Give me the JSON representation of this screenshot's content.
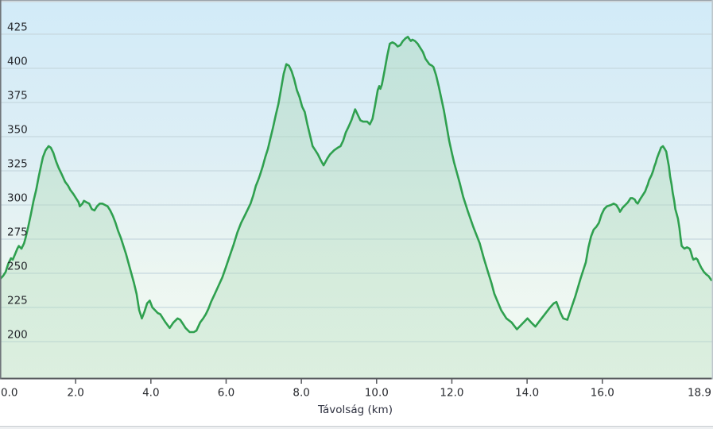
{
  "chart_data": {
    "type": "area",
    "title": "",
    "xlabel": "Távolság (km)",
    "ylabel": "",
    "x_unit": "km",
    "y_unit": "m",
    "xlim": [
      0,
      18.9
    ],
    "ylim": [
      172,
      445
    ],
    "grid": true,
    "legend": "none",
    "y_tick_labels": [
      "425",
      "400",
      "375",
      "350",
      "325",
      "300",
      "275",
      "250",
      "225",
      "200"
    ],
    "y_gridlines": [
      425,
      400,
      375,
      350,
      325,
      300,
      275,
      250,
      225,
      200
    ],
    "x_ticks": [
      0,
      2,
      4,
      6,
      8,
      10,
      12,
      14,
      16,
      18.9
    ],
    "x_tick_labels": [
      "0.0",
      "2.0",
      "4.0",
      "6.0",
      "8.0",
      "10.0",
      "12.0",
      "14.0",
      "16.0",
      "18.9"
    ],
    "colors": {
      "line": "#2fa04f",
      "area_fill_top": "#a8d6b4",
      "area_fill_bottom": "#b9dfc2",
      "background_top": "#d2ebf8",
      "background_bottom": "#f3faf3",
      "gridline": "#c6d8df",
      "axis": "#56585c",
      "tick_label": "#26282d",
      "axis_title": "#2e3140"
    },
    "series": [
      {
        "name": "elevation-profile",
        "points": [
          [
            0.0,
            246
          ],
          [
            0.07,
            248
          ],
          [
            0.14,
            251
          ],
          [
            0.21,
            257
          ],
          [
            0.28,
            261
          ],
          [
            0.33,
            260
          ],
          [
            0.39,
            264
          ],
          [
            0.45,
            268
          ],
          [
            0.49,
            270
          ],
          [
            0.56,
            268
          ],
          [
            0.63,
            272
          ],
          [
            0.67,
            276
          ],
          [
            0.74,
            284
          ],
          [
            0.81,
            293
          ],
          [
            0.88,
            303
          ],
          [
            0.95,
            311
          ],
          [
            1.02,
            321
          ],
          [
            1.09,
            330
          ],
          [
            1.13,
            335
          ],
          [
            1.2,
            340
          ],
          [
            1.28,
            343
          ],
          [
            1.34,
            342
          ],
          [
            1.41,
            338
          ],
          [
            1.48,
            332
          ],
          [
            1.55,
            327
          ],
          [
            1.62,
            323
          ],
          [
            1.72,
            317
          ],
          [
            1.8,
            314
          ],
          [
            1.86,
            311
          ],
          [
            1.94,
            308
          ],
          [
            2.01,
            305
          ],
          [
            2.08,
            302
          ],
          [
            2.11,
            299
          ],
          [
            2.18,
            301
          ],
          [
            2.22,
            303
          ],
          [
            2.29,
            302
          ],
          [
            2.36,
            301
          ],
          [
            2.43,
            297
          ],
          [
            2.5,
            296
          ],
          [
            2.57,
            299
          ],
          [
            2.64,
            301
          ],
          [
            2.71,
            301
          ],
          [
            2.78,
            300
          ],
          [
            2.85,
            299
          ],
          [
            2.92,
            296
          ],
          [
            2.99,
            292
          ],
          [
            3.06,
            287
          ],
          [
            3.13,
            281
          ],
          [
            3.2,
            276
          ],
          [
            3.27,
            270
          ],
          [
            3.34,
            264
          ],
          [
            3.41,
            257
          ],
          [
            3.48,
            250
          ],
          [
            3.55,
            243
          ],
          [
            3.62,
            235
          ],
          [
            3.69,
            223
          ],
          [
            3.76,
            217
          ],
          [
            3.83,
            222
          ],
          [
            3.9,
            228
          ],
          [
            3.97,
            230
          ],
          [
            4.04,
            225
          ],
          [
            4.11,
            223
          ],
          [
            4.18,
            221
          ],
          [
            4.25,
            220
          ],
          [
            4.32,
            217
          ],
          [
            4.39,
            214
          ],
          [
            4.5,
            210
          ],
          [
            4.6,
            214
          ],
          [
            4.71,
            217
          ],
          [
            4.78,
            216
          ],
          [
            4.85,
            213
          ],
          [
            4.92,
            210
          ],
          [
            5.03,
            207
          ],
          [
            5.14,
            207
          ],
          [
            5.21,
            208
          ],
          [
            5.31,
            214
          ],
          [
            5.39,
            217
          ],
          [
            5.46,
            220
          ],
          [
            5.53,
            224
          ],
          [
            5.6,
            229
          ],
          [
            5.7,
            235
          ],
          [
            5.8,
            241
          ],
          [
            5.9,
            247
          ],
          [
            6.0,
            255
          ],
          [
            6.1,
            263
          ],
          [
            6.2,
            271
          ],
          [
            6.3,
            280
          ],
          [
            6.4,
            287
          ],
          [
            6.51,
            293
          ],
          [
            6.58,
            297
          ],
          [
            6.65,
            301
          ],
          [
            6.72,
            307
          ],
          [
            6.79,
            314
          ],
          [
            6.85,
            318
          ],
          [
            6.9,
            322
          ],
          [
            6.97,
            328
          ],
          [
            7.04,
            335
          ],
          [
            7.11,
            341
          ],
          [
            7.18,
            349
          ],
          [
            7.25,
            357
          ],
          [
            7.32,
            366
          ],
          [
            7.39,
            374
          ],
          [
            7.46,
            385
          ],
          [
            7.53,
            396
          ],
          [
            7.6,
            403
          ],
          [
            7.67,
            402
          ],
          [
            7.74,
            398
          ],
          [
            7.81,
            392
          ],
          [
            7.88,
            384
          ],
          [
            7.95,
            379
          ],
          [
            8.02,
            372
          ],
          [
            8.09,
            368
          ],
          [
            8.16,
            359
          ],
          [
            8.23,
            351
          ],
          [
            8.3,
            343
          ],
          [
            8.37,
            340
          ],
          [
            8.44,
            337
          ],
          [
            8.51,
            333
          ],
          [
            8.59,
            329
          ],
          [
            8.69,
            334
          ],
          [
            8.76,
            337
          ],
          [
            8.87,
            340
          ],
          [
            8.97,
            342
          ],
          [
            9.04,
            343
          ],
          [
            9.11,
            347
          ],
          [
            9.18,
            353
          ],
          [
            9.25,
            357
          ],
          [
            9.33,
            362
          ],
          [
            9.43,
            370
          ],
          [
            9.5,
            366
          ],
          [
            9.57,
            362
          ],
          [
            9.64,
            361
          ],
          [
            9.75,
            361
          ],
          [
            9.82,
            359
          ],
          [
            9.89,
            363
          ],
          [
            9.96,
            373
          ],
          [
            10.03,
            384
          ],
          [
            10.07,
            387
          ],
          [
            10.1,
            385
          ],
          [
            10.14,
            388
          ],
          [
            10.21,
            398
          ],
          [
            10.28,
            409
          ],
          [
            10.35,
            418
          ],
          [
            10.42,
            419
          ],
          [
            10.49,
            418
          ],
          [
            10.56,
            416
          ],
          [
            10.63,
            417
          ],
          [
            10.7,
            420
          ],
          [
            10.77,
            422
          ],
          [
            10.83,
            423
          ],
          [
            10.88,
            421
          ],
          [
            10.91,
            420
          ],
          [
            10.95,
            421
          ],
          [
            11.02,
            420
          ],
          [
            11.09,
            418
          ],
          [
            11.16,
            415
          ],
          [
            11.23,
            412
          ],
          [
            11.3,
            407
          ],
          [
            11.4,
            403
          ],
          [
            11.47,
            402
          ],
          [
            11.51,
            401
          ],
          [
            11.58,
            395
          ],
          [
            11.65,
            387
          ],
          [
            11.72,
            378
          ],
          [
            11.79,
            369
          ],
          [
            11.86,
            358
          ],
          [
            11.93,
            347
          ],
          [
            12.0,
            338
          ],
          [
            12.06,
            331
          ],
          [
            12.13,
            324
          ],
          [
            12.21,
            316
          ],
          [
            12.3,
            306
          ],
          [
            12.43,
            295
          ],
          [
            12.57,
            284
          ],
          [
            12.74,
            272
          ],
          [
            12.85,
            261
          ],
          [
            12.95,
            252
          ],
          [
            13.05,
            243
          ],
          [
            13.13,
            235
          ],
          [
            13.22,
            229
          ],
          [
            13.31,
            223
          ],
          [
            13.45,
            217
          ],
          [
            13.59,
            214
          ],
          [
            13.73,
            209
          ],
          [
            13.87,
            213
          ],
          [
            14.01,
            217
          ],
          [
            14.11,
            214
          ],
          [
            14.22,
            211
          ],
          [
            14.33,
            215
          ],
          [
            14.47,
            220
          ],
          [
            14.61,
            225
          ],
          [
            14.71,
            228
          ],
          [
            14.78,
            229
          ],
          [
            14.89,
            221
          ],
          [
            14.96,
            217
          ],
          [
            15.07,
            216
          ],
          [
            15.18,
            225
          ],
          [
            15.28,
            233
          ],
          [
            15.42,
            246
          ],
          [
            15.49,
            252
          ],
          [
            15.56,
            258
          ],
          [
            15.63,
            269
          ],
          [
            15.7,
            277
          ],
          [
            15.77,
            282
          ],
          [
            15.84,
            284
          ],
          [
            15.91,
            287
          ],
          [
            15.98,
            293
          ],
          [
            16.05,
            297
          ],
          [
            16.12,
            299
          ],
          [
            16.23,
            300
          ],
          [
            16.3,
            301
          ],
          [
            16.37,
            300
          ],
          [
            16.44,
            297
          ],
          [
            16.47,
            295
          ],
          [
            16.54,
            298
          ],
          [
            16.61,
            300
          ],
          [
            16.68,
            302
          ],
          [
            16.75,
            305
          ],
          [
            16.8,
            305
          ],
          [
            16.86,
            304
          ],
          [
            16.9,
            302
          ],
          [
            16.94,
            301
          ],
          [
            17.0,
            304
          ],
          [
            17.07,
            307
          ],
          [
            17.14,
            310
          ],
          [
            17.18,
            313
          ],
          [
            17.21,
            315
          ],
          [
            17.24,
            318
          ],
          [
            17.31,
            322
          ],
          [
            17.35,
            325
          ],
          [
            17.38,
            328
          ],
          [
            17.42,
            331
          ],
          [
            17.45,
            334
          ],
          [
            17.49,
            337
          ],
          [
            17.52,
            339
          ],
          [
            17.56,
            342
          ],
          [
            17.61,
            343
          ],
          [
            17.66,
            341
          ],
          [
            17.7,
            339
          ],
          [
            17.73,
            334
          ],
          [
            17.77,
            328
          ],
          [
            17.8,
            321
          ],
          [
            17.84,
            315
          ],
          [
            17.87,
            309
          ],
          [
            17.91,
            303
          ],
          [
            17.94,
            297
          ],
          [
            17.98,
            293
          ],
          [
            18.01,
            290
          ],
          [
            18.05,
            283
          ],
          [
            18.08,
            276
          ],
          [
            18.11,
            270
          ],
          [
            18.18,
            268
          ],
          [
            18.25,
            269
          ],
          [
            18.32,
            268
          ],
          [
            18.35,
            266
          ],
          [
            18.39,
            262
          ],
          [
            18.42,
            260
          ],
          [
            18.49,
            261
          ],
          [
            18.53,
            260
          ],
          [
            18.56,
            258
          ],
          [
            18.63,
            254
          ],
          [
            18.7,
            251
          ],
          [
            18.77,
            249
          ],
          [
            18.82,
            248
          ],
          [
            18.9,
            245
          ]
        ]
      }
    ]
  }
}
